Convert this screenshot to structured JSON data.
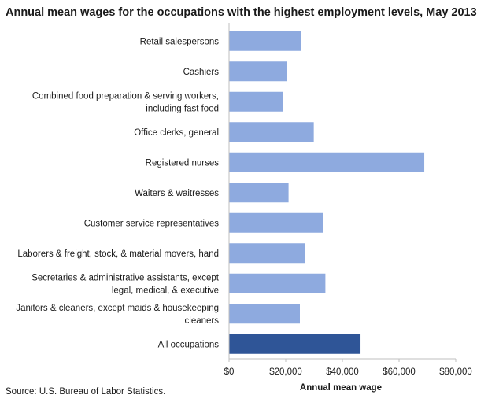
{
  "chart_data": {
    "type": "bar",
    "orientation": "horizontal",
    "title": "Annual mean wages for the occupations with the highest employment levels, May 2013",
    "xlabel": "Annual mean wage",
    "ylabel": "",
    "xlim": [
      0,
      80000
    ],
    "x_ticks": [
      "$0",
      "$20,000",
      "$40,000",
      "$60,000",
      "$80,000"
    ],
    "x_tick_values": [
      0,
      20000,
      40000,
      60000,
      80000
    ],
    "grid": false,
    "legend": "none",
    "categories": [
      [
        "Retail salespersons"
      ],
      [
        "Cashiers"
      ],
      [
        "Combined food preparation & serving workers,",
        "including fast food"
      ],
      [
        "Office clerks, general"
      ],
      [
        "Registered nurses"
      ],
      [
        "Waiters & waitresses"
      ],
      [
        "Customer service representatives"
      ],
      [
        "Laborers & freight, stock, & material movers, hand"
      ],
      [
        "Secretaries & administrative assistants, except",
        "legal, medical, & executive"
      ],
      [
        "Janitors & cleaners, except maids & housekeeping",
        "cleaners"
      ],
      [
        "All occupations"
      ]
    ],
    "values": [
      25300,
      20400,
      19000,
      29900,
      68900,
      21000,
      33100,
      26700,
      34000,
      25000,
      46400
    ],
    "colors": {
      "bar": "#8eaadf",
      "highlight": "#2f5597",
      "axis": "#bfbfbf"
    },
    "highlight_index": 10,
    "source": "Source: U.S. Bureau of Labor Statistics."
  }
}
